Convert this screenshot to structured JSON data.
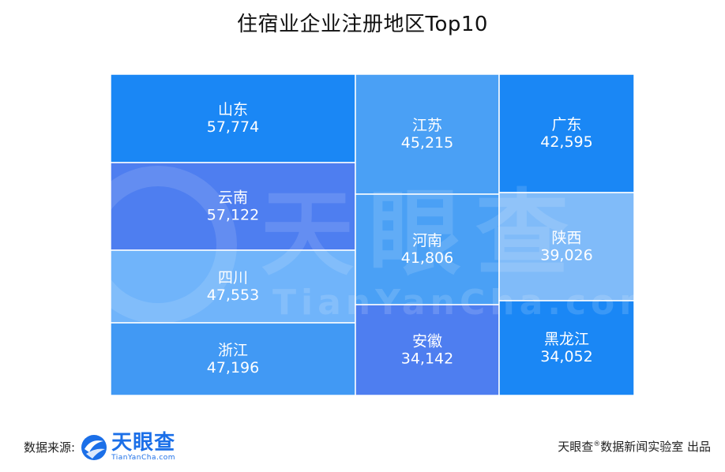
{
  "title": "住宿业企业注册地区Top10",
  "chart_data": {
    "type": "treemap",
    "title": "住宿业企业注册地区Top10",
    "items": [
      {
        "name": "山东",
        "value": 57774,
        "label": "57,774",
        "color": "#1a87f5"
      },
      {
        "name": "云南",
        "value": 57122,
        "label": "57,122",
        "color": "#4e7ef0"
      },
      {
        "name": "四川",
        "value": 47553,
        "label": "47,553",
        "color": "#70b4fa"
      },
      {
        "name": "浙江",
        "value": 47196,
        "label": "47,196",
        "color": "#4199f4"
      },
      {
        "name": "江苏",
        "value": 45215,
        "label": "45,215",
        "color": "#4aa0f5"
      },
      {
        "name": "河南",
        "value": 41806,
        "label": "41,806",
        "color": "#4aa0f5"
      },
      {
        "name": "安徽",
        "value": 34142,
        "label": "34,142",
        "color": "#4e7ef0"
      },
      {
        "name": "广东",
        "value": 42595,
        "label": "42,595",
        "color": "#1a87f5"
      },
      {
        "name": "陕西",
        "value": 39026,
        "label": "39,026",
        "color": "#80bbf9"
      },
      {
        "name": "黑龙江",
        "value": 34052,
        "label": "34,052",
        "color": "#1a87f5"
      }
    ]
  },
  "watermark": {
    "cn": "天眼查",
    "en": "TianYanCha.com"
  },
  "footer": {
    "source_label": "数据来源:",
    "logo_cn": "天眼查",
    "logo_en": "TianYanCha.com",
    "credit_brand": "天眼查",
    "credit_mark": "®",
    "credit_rest": "数据新闻实验室 出品"
  }
}
